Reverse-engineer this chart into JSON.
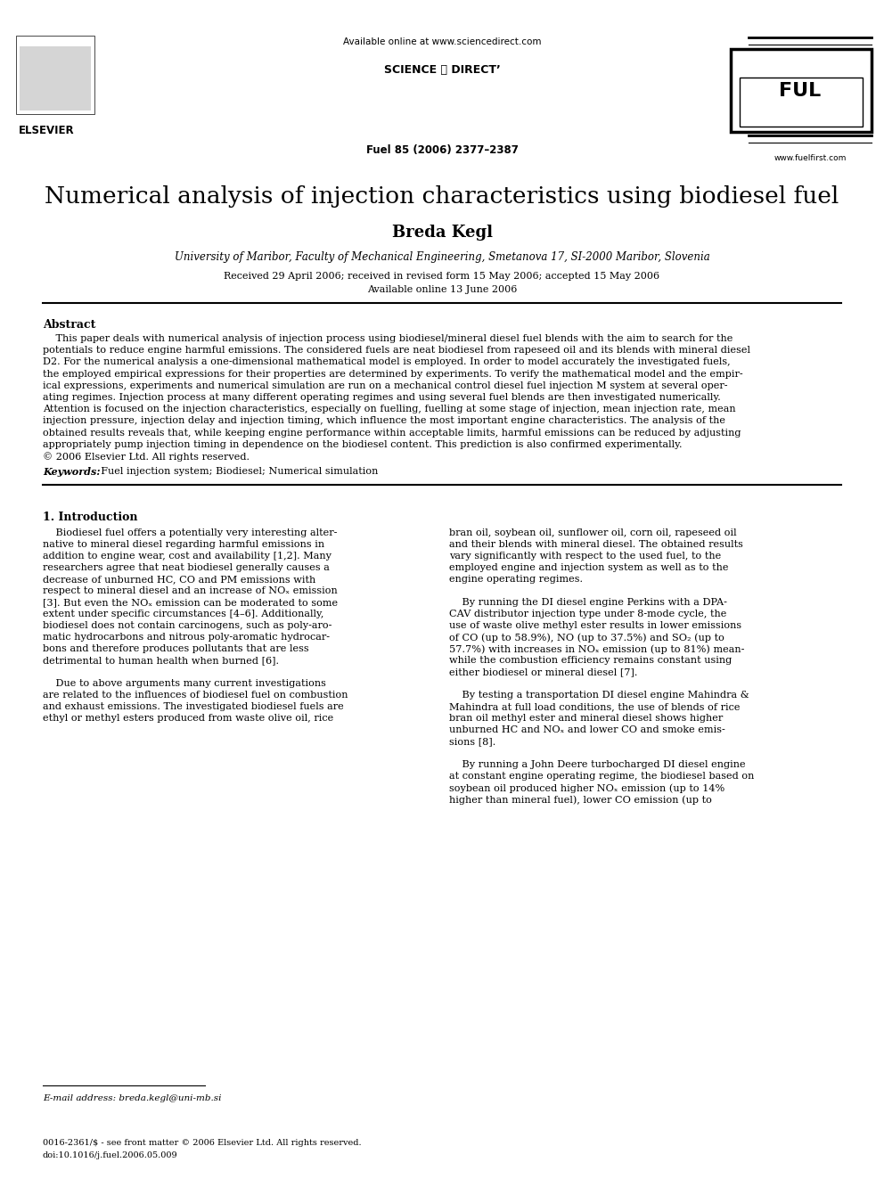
{
  "available_online": "Available online at www.sciencedirect.com",
  "sciencedirect": "SCIENCE ⓓ DIRECT’",
  "journal_info": "Fuel 85 (2006) 2377–2387",
  "website": "www.fuelfirst.com",
  "elsevier": "ELSEVIER",
  "title": "Numerical analysis of injection characteristics using biodiesel fuel",
  "author": "Breda Kegl",
  "affiliation": "University of Maribor, Faculty of Mechanical Engineering, Smetanova 17, SI-2000 Maribor, Slovenia",
  "received": "Received 29 April 2006; received in revised form 15 May 2006; accepted 15 May 2006",
  "available_date": "Available online 13 June 2006",
  "abstract_title": "Abstract",
  "abstract_lines": [
    "    This paper deals with numerical analysis of injection process using biodiesel/mineral diesel fuel blends with the aim to search for the",
    "potentials to reduce engine harmful emissions. The considered fuels are neat biodiesel from rapeseed oil and its blends with mineral diesel",
    "D2. For the numerical analysis a one-dimensional mathematical model is employed. In order to model accurately the investigated fuels,",
    "the employed empirical expressions for their properties are determined by experiments. To verify the mathematical model and the empir-",
    "ical expressions, experiments and numerical simulation are run on a mechanical control diesel fuel injection M system at several oper-",
    "ating regimes. Injection process at many different operating regimes and using several fuel blends are then investigated numerically.",
    "Attention is focused on the injection characteristics, especially on fuelling, fuelling at some stage of injection, mean injection rate, mean",
    "injection pressure, injection delay and injection timing, which influence the most important engine characteristics. The analysis of the",
    "obtained results reveals that, while keeping engine performance within acceptable limits, harmful emissions can be reduced by adjusting",
    "appropriately pump injection timing in dependence on the biodiesel content. This prediction is also confirmed experimentally.",
    "© 2006 Elsevier Ltd. All rights reserved."
  ],
  "keywords_label": "Keywords:",
  "keywords": "  Fuel injection system; Biodiesel; Numerical simulation",
  "section1_title": "1. Introduction",
  "col1_lines": [
    "    Biodiesel fuel offers a potentially very interesting alter-",
    "native to mineral diesel regarding harmful emissions in",
    "addition to engine wear, cost and availability [1,2]. Many",
    "researchers agree that neat biodiesel generally causes a",
    "decrease of unburned HC, CO and PM emissions with",
    "respect to mineral diesel and an increase of NOₓ emission",
    "[3]. But even the NOₓ emission can be moderated to some",
    "extent under specific circumstances [4–6]. Additionally,",
    "biodiesel does not contain carcinogens, such as poly-aro-",
    "matic hydrocarbons and nitrous poly-aromatic hydrocar-",
    "bons and therefore produces pollutants that are less",
    "detrimental to human health when burned [6].",
    "",
    "    Due to above arguments many current investigations",
    "are related to the influences of biodiesel fuel on combustion",
    "and exhaust emissions. The investigated biodiesel fuels are",
    "ethyl or methyl esters produced from waste olive oil, rice"
  ],
  "col2_lines": [
    "bran oil, soybean oil, sunflower oil, corn oil, rapeseed oil",
    "and their blends with mineral diesel. The obtained results",
    "vary significantly with respect to the used fuel, to the",
    "employed engine and injection system as well as to the",
    "engine operating regimes.",
    "",
    "    By running the DI diesel engine Perkins with a DPA-",
    "CAV distributor injection type under 8-mode cycle, the",
    "use of waste olive methyl ester results in lower emissions",
    "of CO (up to 58.9%), NO (up to 37.5%) and SO₂ (up to",
    "57.7%) with increases in NOₓ emission (up to 81%) mean-",
    "while the combustion efficiency remains constant using",
    "either biodiesel or mineral diesel [7].",
    "",
    "    By testing a transportation DI diesel engine Mahindra &",
    "Mahindra at full load conditions, the use of blends of rice",
    "bran oil methyl ester and mineral diesel shows higher",
    "unburned HC and NOₓ and lower CO and smoke emis-",
    "sions [8].",
    "",
    "    By running a John Deere turbocharged DI diesel engine",
    "at constant engine operating regime, the biodiesel based on",
    "soybean oil produced higher NOₓ emission (up to 14%",
    "higher than mineral fuel), lower CO emission (up to"
  ],
  "footnote_line": "E-mail address: breda.kegl@uni-mb.si",
  "footer1": "0016-2361/$ - see front matter © 2006 Elsevier Ltd. All rights reserved.",
  "footer2": "doi:10.1016/j.fuel.2006.05.009",
  "bg_color": "#ffffff",
  "text_color": "#000000"
}
